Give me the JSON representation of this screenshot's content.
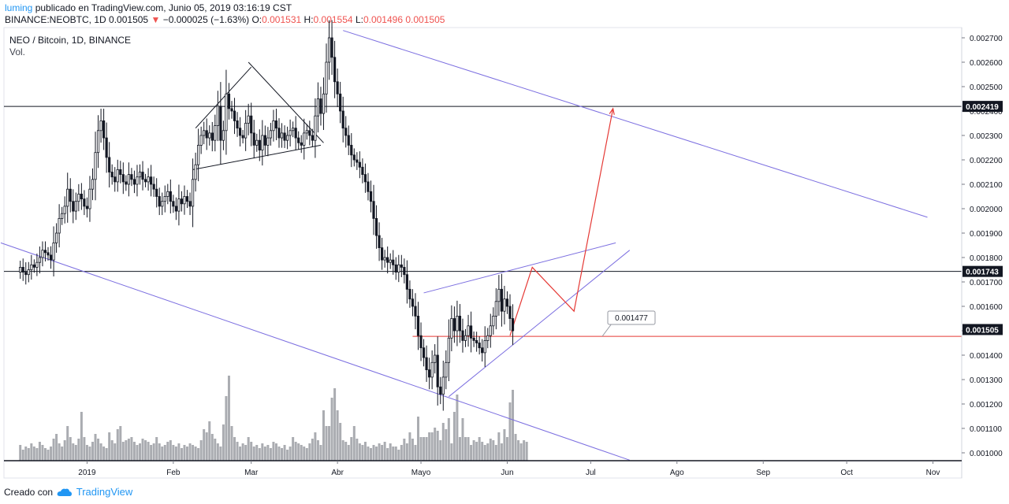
{
  "header": {
    "author": "luming",
    "published_text": "publicado en TradingView.com, Junio 05, 2019 03:16:19 CST",
    "symbol": "BINANCE:NEOBTC, 1D",
    "price": "0.001505",
    "change_arrow": "▼",
    "change": "−0.000025 (−1.63%)",
    "o_label": "O:",
    "o_value": "0.001531",
    "h_label": "H:",
    "h_value": "0.001554",
    "l_label": "L:",
    "l_value": "0.001496",
    "c_value": "0.001505"
  },
  "legend": {
    "symbol_title": "NEO / Bitcoin, 1D, BINANCE",
    "volume_label": "Vol."
  },
  "footer": {
    "created_with": "Creado con",
    "brand": "TradingView",
    "logo_icon": "tradingview-cloud-icon"
  },
  "colors": {
    "up_candle": "#131722",
    "down_candle": "#131722",
    "volume": "#9b9ea3",
    "channel_lines": "#7b6ee0",
    "projection": "#e53935",
    "support_line": "#e53935",
    "accent": "#2196f3"
  },
  "chart_data": {
    "type": "candlestick",
    "symbol": "NEO / Bitcoin, 1D, BINANCE",
    "y_axis": {
      "ylim": [
        0.00095,
        0.00275
      ],
      "ticks": [
        "0.002700",
        "0.002600",
        "0.002500",
        "0.002400",
        "0.002300",
        "0.002200",
        "0.002100",
        "0.002000",
        "0.001900",
        "0.001800",
        "0.001700",
        "0.001600",
        "0.001500",
        "0.001400",
        "0.001300",
        "0.001200",
        "0.001100",
        "0.001000"
      ]
    },
    "x_axis": {
      "ticks": [
        {
          "label": "2019",
          "date": "2019-01-01"
        },
        {
          "label": "Feb",
          "date": "2019-02-01"
        },
        {
          "label": "Mar",
          "date": "2019-03-01"
        },
        {
          "label": "Abr",
          "date": "2019-04-01"
        },
        {
          "label": "Mayo",
          "date": "2019-05-01"
        },
        {
          "label": "Jun",
          "date": "2019-06-01"
        },
        {
          "label": "Jul",
          "date": "2019-07-01"
        },
        {
          "label": "Ago",
          "date": "2019-08-01"
        },
        {
          "label": "Sep",
          "date": "2019-09-01"
        },
        {
          "label": "Oct",
          "date": "2019-10-01"
        },
        {
          "label": "Nov",
          "date": "2019-11-01"
        }
      ]
    },
    "price_labels": [
      {
        "value": "0.002419",
        "price": 0.002419,
        "style": "black"
      },
      {
        "value": "0.001743",
        "price": 0.001743,
        "style": "black"
      },
      {
        "value": "0.001505",
        "price": 0.001505,
        "style": "black"
      }
    ],
    "callout": {
      "text": "0.001477",
      "price": 0.001477
    },
    "close_series": {
      "start_date": "2018-12-08",
      "values": [
        0.00176,
        0.00174,
        0.00173,
        0.00175,
        0.00177,
        0.00176,
        0.00178,
        0.0018,
        0.00183,
        0.00182,
        0.00181,
        0.00179,
        0.00186,
        0.0019,
        0.00196,
        0.00198,
        0.00201,
        0.00208,
        0.00203,
        0.00199,
        0.00203,
        0.00206,
        0.00204,
        0.00201,
        0.002,
        0.00208,
        0.00212,
        0.00223,
        0.00232,
        0.00236,
        0.00229,
        0.00221,
        0.00215,
        0.00213,
        0.00211,
        0.00216,
        0.00214,
        0.00211,
        0.0021,
        0.00214,
        0.00212,
        0.0021,
        0.00213,
        0.00215,
        0.00212,
        0.00211,
        0.00213,
        0.0021,
        0.00208,
        0.00205,
        0.00201,
        0.00203,
        0.00205,
        0.00207,
        0.00203,
        0.00201,
        0.00199,
        0.00204,
        0.00202,
        0.00205,
        0.00203,
        0.00201,
        0.00212,
        0.00218,
        0.00226,
        0.0023,
        0.00232,
        0.00229,
        0.00231,
        0.00228,
        0.00234,
        0.00242,
        0.00228,
        0.00232,
        0.00247,
        0.00241,
        0.0024,
        0.00236,
        0.00233,
        0.0023,
        0.00229,
        0.00235,
        0.00238,
        0.00231,
        0.00226,
        0.00228,
        0.00224,
        0.0023,
        0.00226,
        0.00229,
        0.00232,
        0.00236,
        0.00233,
        0.00229,
        0.00231,
        0.00228,
        0.0023,
        0.00232,
        0.00233,
        0.00229,
        0.00227,
        0.00226,
        0.00231,
        0.00232,
        0.0023,
        0.00228,
        0.00238,
        0.00245,
        0.00239,
        0.00247,
        0.0026,
        0.0027,
        0.00262,
        0.00252,
        0.00247,
        0.0024,
        0.00233,
        0.0023,
        0.00226,
        0.00222,
        0.0022,
        0.00219,
        0.00217,
        0.00214,
        0.00211,
        0.00207,
        0.00203,
        0.00196,
        0.00189,
        0.00184,
        0.00179,
        0.0018,
        0.00178,
        0.00179,
        0.00177,
        0.00174,
        0.00177,
        0.00176,
        0.00173,
        0.00167,
        0.00163,
        0.0016,
        0.00156,
        0.00148,
        0.00143,
        0.00139,
        0.00134,
        0.00131,
        0.00137,
        0.0014,
        0.00127,
        0.00124,
        0.00131,
        0.00137,
        0.00147,
        0.00155,
        0.0015,
        0.00156,
        0.0015,
        0.00146,
        0.00148,
        0.00152,
        0.00147,
        0.00146,
        0.00145,
        0.00143,
        0.00141,
        0.00146,
        0.00148,
        0.00152,
        0.00156,
        0.00162,
        0.00167,
        0.00158,
        0.00163,
        0.0016,
        0.00155,
        0.0015
      ]
    },
    "volume_series": [
      20,
      14,
      18,
      16,
      22,
      18,
      16,
      24,
      20,
      16,
      14,
      18,
      28,
      34,
      22,
      18,
      26,
      44,
      30,
      22,
      20,
      28,
      62,
      30,
      20,
      18,
      24,
      34,
      28,
      22,
      18,
      16,
      36,
      26,
      22,
      40,
      44,
      24,
      26,
      28,
      30,
      24,
      20,
      22,
      28,
      26,
      24,
      20,
      22,
      30,
      22,
      18,
      20,
      24,
      26,
      20,
      18,
      22,
      16,
      20,
      18,
      22,
      20,
      18,
      16,
      26,
      40,
      36,
      50,
      34,
      28,
      22,
      18,
      46,
      82,
      108,
      44,
      30,
      24,
      18,
      22,
      20,
      30,
      24,
      18,
      20,
      16,
      22,
      18,
      20,
      16,
      24,
      22,
      18,
      16,
      20,
      14,
      18,
      30,
      24,
      22,
      20,
      18,
      16,
      22,
      28,
      36,
      26,
      20,
      64,
      44,
      44,
      80,
      92,
      64,
      48,
      26,
      24,
      20,
      30,
      44,
      28,
      22,
      20,
      24,
      18,
      16,
      20,
      18,
      22,
      20,
      24,
      16,
      22,
      18,
      18,
      14,
      20,
      28,
      22,
      36,
      28,
      20,
      56,
      30,
      30,
      30,
      36,
      36,
      42,
      38,
      26,
      48,
      40,
      54,
      22,
      62,
      84,
      30,
      54,
      30,
      30,
      20,
      26,
      24,
      30,
      24,
      20,
      22,
      28,
      26,
      20,
      36,
      22,
      40,
      30,
      74,
      90,
      34,
      26,
      22,
      26,
      24
    ],
    "drawings": {
      "horizontal_lines": [
        0.002419,
        0.001743
      ],
      "support_line": {
        "price": 0.001477,
        "from_date": "2019-04-28",
        "to": "right-edge"
      },
      "descending_channel": [
        {
          "from": {
            "date": "2019-04-03",
            "price": 0.00273
          },
          "to": {
            "date": "2019-10-30",
            "price": 0.001965
          }
        },
        {
          "from": {
            "date": "2018-12-01",
            "price": 0.00186
          },
          "to": {
            "date": "2019-07-15",
            "price": 0.00097
          }
        }
      ],
      "rising_wedge": [
        {
          "from": {
            "date": "2019-05-02",
            "price": 0.001655
          },
          "to": {
            "date": "2019-07-10",
            "price": 0.00186
          }
        },
        {
          "from": {
            "date": "2019-05-11",
            "price": 0.00123
          },
          "to": {
            "date": "2019-07-15",
            "price": 0.00183
          }
        }
      ],
      "triangle_feb_mar": [
        {
          "from": {
            "date": "2019-02-08",
            "price": 0.00216
          },
          "to": {
            "date": "2019-03-26",
            "price": 0.00226
          }
        },
        {
          "from": {
            "date": "2019-02-28",
            "price": 0.0026
          },
          "to": {
            "date": "2019-03-27",
            "price": 0.00227
          }
        },
        {
          "from": {
            "date": "2019-02-09",
            "price": 0.00233
          },
          "to": {
            "date": "2019-03-01",
            "price": 0.00258
          }
        }
      ],
      "projection_path": [
        {
          "date": "2019-06-02",
          "price": 0.00148
        },
        {
          "date": "2019-06-10",
          "price": 0.00176
        },
        {
          "date": "2019-06-25",
          "price": 0.00158
        },
        {
          "date": "2019-07-09",
          "price": 0.00241
        }
      ]
    }
  }
}
